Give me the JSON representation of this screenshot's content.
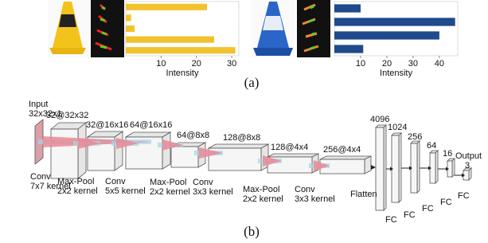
{
  "chart_data": [
    {
      "type": "bar",
      "orientation": "horizontal",
      "categories": [
        null,
        null,
        null,
        null,
        null
      ],
      "values": [
        23,
        1.5,
        2.5,
        25,
        31
      ],
      "color": "#f0c22e",
      "xlim": [
        0,
        32
      ],
      "xticks": [
        10,
        20,
        30
      ],
      "xlabel": "Intensity"
    },
    {
      "type": "bar",
      "orientation": "horizontal",
      "categories": [
        null,
        null,
        null,
        null
      ],
      "values": [
        10,
        46,
        40,
        11
      ],
      "color": "#1f4a8c",
      "xlim": [
        0,
        47
      ],
      "xticks": [
        10,
        20,
        30,
        40
      ],
      "xlabel": "Intensity"
    }
  ],
  "captions": [
    "(a)",
    "(b)"
  ],
  "network": {
    "sizes": [
      [
        "Input",
        "32x32x1"
      ],
      [
        "32@32x32"
      ],
      [
        "32@16x16"
      ],
      [
        "64@16x16"
      ],
      [
        "64@8x8"
      ],
      [
        "128@8x8"
      ],
      [
        "128@4x4"
      ],
      [
        "256@4x4"
      ],
      [
        "4096"
      ],
      [
        "1024"
      ],
      [
        "256"
      ],
      [
        "64"
      ],
      [
        "16"
      ],
      [
        "Output",
        "3"
      ]
    ],
    "operations": [
      [
        "Conv",
        "7x7 kernel"
      ],
      [
        "Max-Pool",
        "2x2 kernel"
      ],
      [
        "Conv",
        "5x5 kernel"
      ],
      [
        "Max-Pool",
        "2x2 kernel"
      ],
      [
        "Conv",
        "3x3 kernel"
      ],
      [
        "Max-Pool",
        "2x2 kernel"
      ],
      [
        "Conv",
        "3x3 kernel"
      ],
      [
        "Flatten"
      ],
      [
        "FC"
      ],
      [
        "FC"
      ],
      [
        "FC"
      ],
      [
        "FC"
      ],
      [
        "FC"
      ]
    ]
  }
}
